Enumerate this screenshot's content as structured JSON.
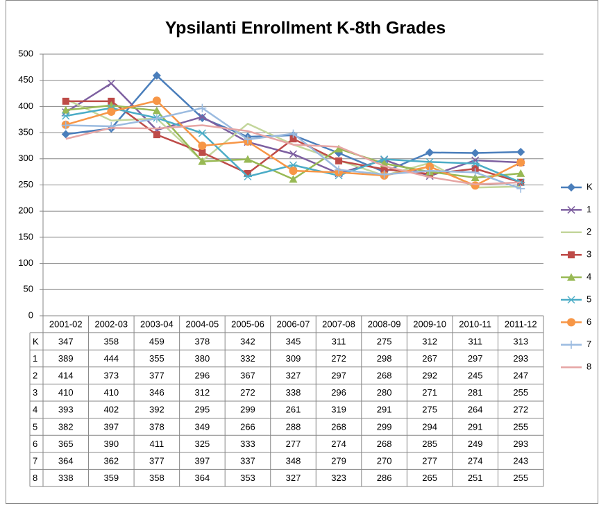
{
  "chart_data": {
    "type": "line",
    "title": "Ypsilanti Enrollment K-8th Grades",
    "categories": [
      "2001-02",
      "2002-03",
      "2003-04",
      "2004-05",
      "2005-06",
      "2006-07",
      "2007-08",
      "2008-09",
      "2009-10",
      "2010-11",
      "2011-12"
    ],
    "ylim": [
      0,
      500
    ],
    "yticks": [
      0,
      50,
      100,
      150,
      200,
      250,
      300,
      350,
      400,
      450,
      500
    ],
    "grid": true,
    "legend": "right",
    "series": [
      {
        "name": "K",
        "color": "#4a7ebb",
        "marker": "diamond",
        "values": [
          347,
          358,
          459,
          378,
          342,
          345,
          311,
          275,
          312,
          311,
          313
        ]
      },
      {
        "name": "1",
        "color": "#7d5fa0",
        "marker": "x",
        "values": [
          389,
          444,
          355,
          380,
          332,
          309,
          272,
          298,
          267,
          297,
          293
        ]
      },
      {
        "name": "2",
        "color": "#c3d69b",
        "marker": "none",
        "values": [
          414,
          373,
          377,
          296,
          367,
          327,
          297,
          268,
          292,
          245,
          247
        ]
      },
      {
        "name": "3",
        "color": "#be4b48",
        "marker": "square",
        "values": [
          410,
          410,
          346,
          312,
          272,
          338,
          296,
          280,
          271,
          281,
          255
        ]
      },
      {
        "name": "4",
        "color": "#98b954",
        "marker": "triangle",
        "values": [
          393,
          402,
          392,
          295,
          299,
          261,
          319,
          291,
          275,
          264,
          272
        ]
      },
      {
        "name": "5",
        "color": "#4bacc6",
        "marker": "star",
        "values": [
          382,
          397,
          378,
          349,
          266,
          288,
          268,
          299,
          294,
          291,
          255
        ]
      },
      {
        "name": "6",
        "color": "#f79646",
        "marker": "circle",
        "values": [
          365,
          390,
          411,
          325,
          333,
          277,
          274,
          268,
          285,
          249,
          293
        ]
      },
      {
        "name": "7",
        "color": "#9bbbe0",
        "marker": "plus",
        "values": [
          364,
          362,
          377,
          397,
          337,
          348,
          279,
          270,
          277,
          274,
          243
        ]
      },
      {
        "name": "8",
        "color": "#e6a5a4",
        "marker": "none",
        "values": [
          338,
          359,
          358,
          364,
          353,
          327,
          323,
          286,
          265,
          251,
          255
        ]
      }
    ]
  }
}
